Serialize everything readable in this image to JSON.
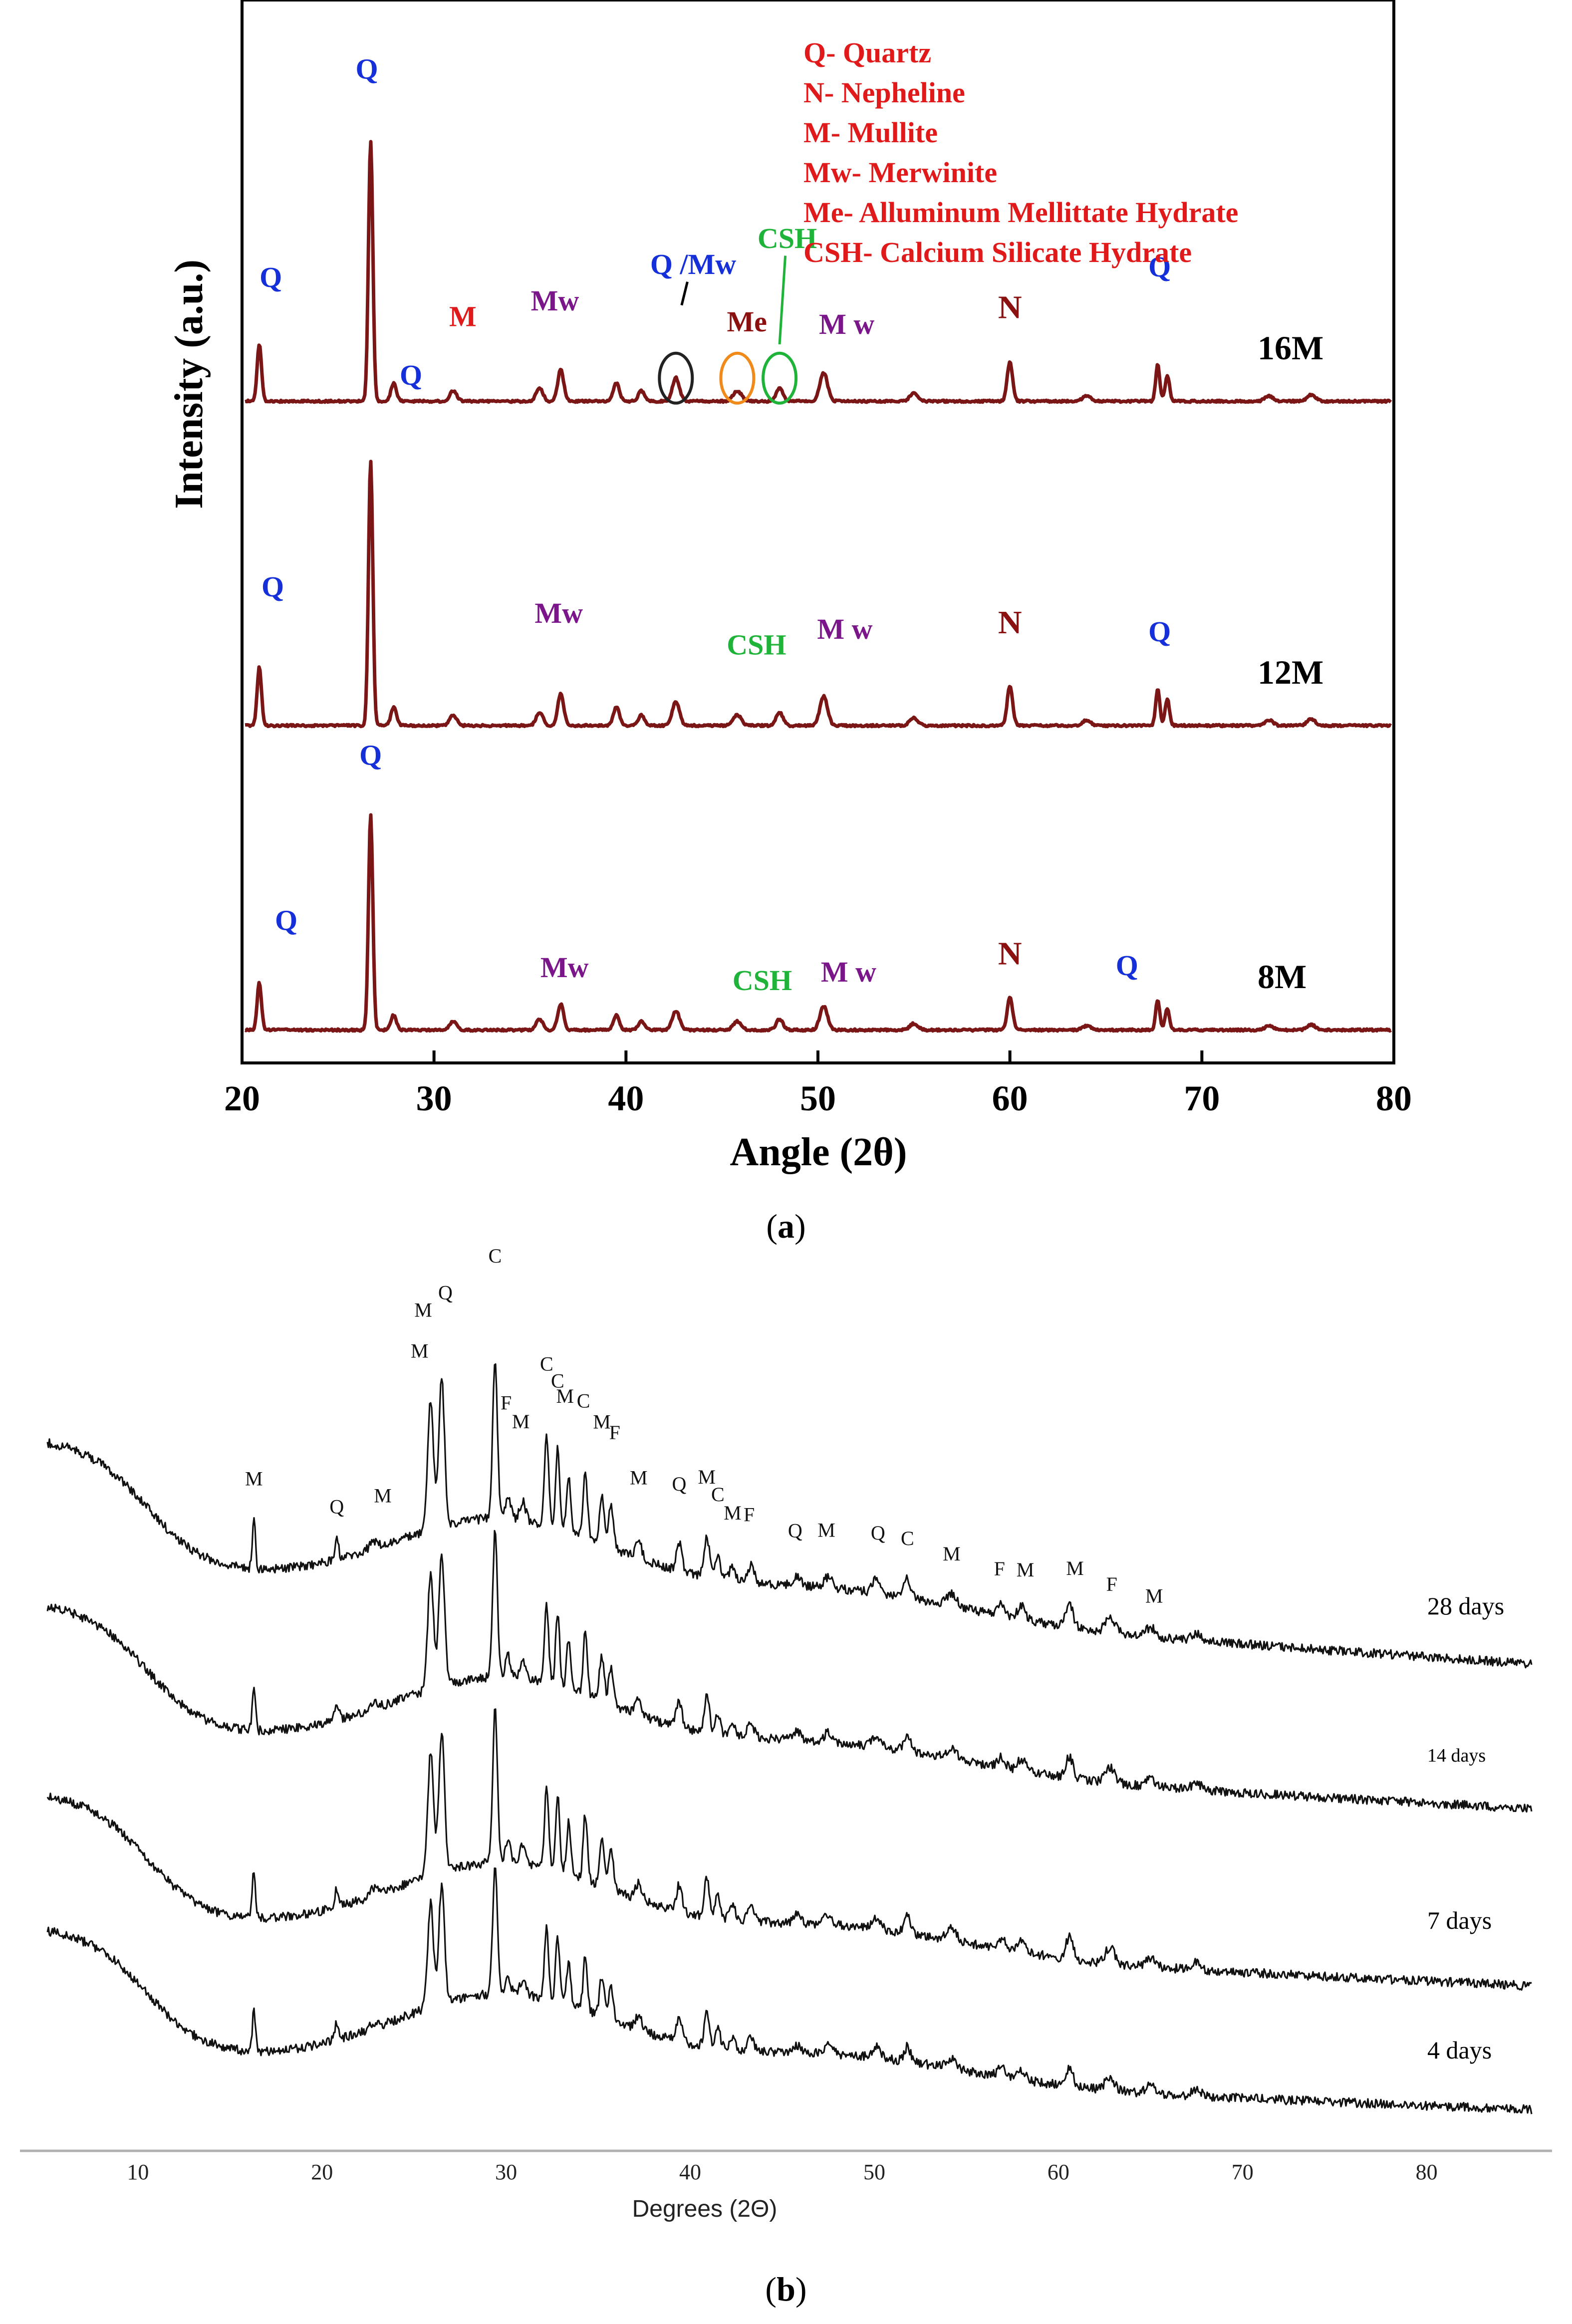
{
  "figure": {
    "panel_a_caption": "a",
    "panel_b_caption": "b"
  },
  "colors": {
    "trace_a": "#7b1616",
    "trace_b": "#111111",
    "quartz": "#1530d8",
    "merwinite": "#7a168a",
    "nepheline": "#8b1010",
    "mullite_a": "#e01a1a",
    "csh": "#1fb33a",
    "legend_text": "#e01a1a",
    "circle_black": "#222222",
    "circle_orange": "#f08a1a",
    "circle_green": "#1fb33a"
  },
  "chart_data": [
    {
      "id": "a",
      "type": "line",
      "title": "",
      "xlabel": "Angle (2θ)",
      "ylabel": "Intensity (a.u.)",
      "xlim": [
        20,
        80
      ],
      "xticks": [
        "20",
        "30",
        "40",
        "50",
        "60",
        "70",
        "80"
      ],
      "legend": [
        "Q- Quartz",
        "N- Nepheline",
        "M- Mullite",
        "Mw- Merwinite",
        "Me- Alluminum Mellittate Hydrate",
        "CSH- Calcium Silicate Hydrate"
      ],
      "peaks_2theta": [
        {
          "x": 20.9,
          "h": 0.22,
          "w": 0.16
        },
        {
          "x": 26.7,
          "h": 1.0,
          "w": 0.16
        },
        {
          "x": 27.9,
          "h": 0.07,
          "w": 0.2
        },
        {
          "x": 31.0,
          "h": 0.04,
          "w": 0.25
        },
        {
          "x": 35.5,
          "h": 0.05,
          "w": 0.25
        },
        {
          "x": 36.6,
          "h": 0.12,
          "w": 0.22
        },
        {
          "x": 39.5,
          "h": 0.07,
          "w": 0.22
        },
        {
          "x": 40.8,
          "h": 0.04,
          "w": 0.22
        },
        {
          "x": 42.6,
          "h": 0.09,
          "w": 0.26
        },
        {
          "x": 45.8,
          "h": 0.04,
          "w": 0.3
        },
        {
          "x": 48.0,
          "h": 0.05,
          "w": 0.25
        },
        {
          "x": 50.3,
          "h": 0.11,
          "w": 0.28
        },
        {
          "x": 55.0,
          "h": 0.03,
          "w": 0.3
        },
        {
          "x": 60.0,
          "h": 0.15,
          "w": 0.2
        },
        {
          "x": 64.0,
          "h": 0.02,
          "w": 0.3
        },
        {
          "x": 67.7,
          "h": 0.14,
          "w": 0.15
        },
        {
          "x": 68.2,
          "h": 0.1,
          "w": 0.16
        },
        {
          "x": 73.5,
          "h": 0.02,
          "w": 0.3
        },
        {
          "x": 75.7,
          "h": 0.025,
          "w": 0.3
        }
      ],
      "series": [
        {
          "name": "16M",
          "scale": 1.0,
          "annotations": [
            {
              "x": 21.5,
              "label": "Q",
              "phase": "quartz",
              "level": 0.45
            },
            {
              "x": 26.5,
              "label": "Q",
              "phase": "quartz",
              "level": 1.25
            },
            {
              "x": 31.5,
              "label": "M",
              "phase": "mullite_a",
              "level": 0.3
            },
            {
              "x": 36.3,
              "label": "Mw",
              "phase": "merwinite",
              "level": 0.36
            },
            {
              "x": 43.5,
              "label": "Q /Mw",
              "phase": "quartz",
              "level": 0.5
            },
            {
              "x": 48.4,
              "label": "CSH",
              "phase": "csh",
              "level": 0.6
            },
            {
              "x": 46.3,
              "label": "Me",
              "phase": "nepheline",
              "level": 0.28
            },
            {
              "x": 51.5,
              "label": "M w",
              "phase": "merwinite",
              "level": 0.27
            },
            {
              "x": 60.0,
              "label": "N",
              "phase": "nepheline",
              "level": 0.33
            },
            {
              "x": 67.8,
              "label": "Q",
              "phase": "quartz",
              "level": 0.49
            }
          ],
          "label": "16M"
        },
        {
          "name": "12M",
          "scale": 1.0,
          "annotations": [
            {
              "x": 21.6,
              "label": "Q",
              "phase": "quartz",
              "level": 0.5
            },
            {
              "x": 28.8,
              "label": "Q",
              "phase": "quartz",
              "level": 1.3
            },
            {
              "x": 36.5,
              "label": "Mw",
              "phase": "merwinite",
              "level": 0.4
            },
            {
              "x": 46.8,
              "label": "CSH",
              "phase": "csh",
              "level": 0.28
            },
            {
              "x": 51.4,
              "label": "M w",
              "phase": "merwinite",
              "level": 0.34
            },
            {
              "x": 60.0,
              "label": "N",
              "phase": "nepheline",
              "level": 0.36
            },
            {
              "x": 67.8,
              "label": "Q",
              "phase": "quartz",
              "level": 0.33
            }
          ],
          "label": "12M"
        },
        {
          "name": "8M",
          "scale": 1.0,
          "annotations": [
            {
              "x": 22.3,
              "label": "Q",
              "phase": "quartz",
              "level": 0.48
            },
            {
              "x": 26.7,
              "label": "Q",
              "phase": "quartz",
              "level": 1.25
            },
            {
              "x": 36.8,
              "label": "Mw",
              "phase": "merwinite",
              "level": 0.26
            },
            {
              "x": 47.1,
              "label": "CSH",
              "phase": "csh",
              "level": 0.2
            },
            {
              "x": 51.6,
              "label": "M w",
              "phase": "merwinite",
              "level": 0.24
            },
            {
              "x": 60.0,
              "label": "N",
              "phase": "nepheline",
              "level": 0.32
            },
            {
              "x": 66.1,
              "label": "Q",
              "phase": "quartz",
              "level": 0.27
            }
          ],
          "label": "8M"
        }
      ],
      "circled_peaks": [
        {
          "x": 42.6,
          "color": "circle_black",
          "series": "16M"
        },
        {
          "x": 45.8,
          "color": "circle_orange",
          "series": "16M"
        },
        {
          "x": 48.0,
          "color": "circle_green",
          "series": "16M"
        }
      ]
    },
    {
      "id": "b",
      "type": "line",
      "title": "",
      "xlabel": "Degrees (2Θ)",
      "ylabel": "",
      "xlim": [
        4,
        86
      ],
      "xticks": [
        "10",
        "20",
        "30",
        "40",
        "50",
        "60",
        "70",
        "80"
      ],
      "peaks_2theta": [
        {
          "x": 16.3,
          "h": 0.55,
          "w": 0.12
        },
        {
          "x": 20.8,
          "h": 0.22,
          "w": 0.15
        },
        {
          "x": 22.8,
          "h": 0.08,
          "w": 0.3
        },
        {
          "x": 25.9,
          "h": 1.4,
          "w": 0.22
        },
        {
          "x": 26.5,
          "h": 1.6,
          "w": 0.22
        },
        {
          "x": 29.4,
          "h": 1.75,
          "w": 0.18
        },
        {
          "x": 30.1,
          "h": 0.25,
          "w": 0.2
        },
        {
          "x": 30.9,
          "h": 0.2,
          "w": 0.22
        },
        {
          "x": 32.2,
          "h": 0.95,
          "w": 0.16
        },
        {
          "x": 32.8,
          "h": 0.85,
          "w": 0.16
        },
        {
          "x": 33.4,
          "h": 0.6,
          "w": 0.16
        },
        {
          "x": 34.3,
          "h": 0.75,
          "w": 0.16
        },
        {
          "x": 35.2,
          "h": 0.55,
          "w": 0.18
        },
        {
          "x": 35.7,
          "h": 0.45,
          "w": 0.18
        },
        {
          "x": 37.2,
          "h": 0.18,
          "w": 0.25
        },
        {
          "x": 39.4,
          "h": 0.3,
          "w": 0.22
        },
        {
          "x": 40.9,
          "h": 0.45,
          "w": 0.2
        },
        {
          "x": 41.5,
          "h": 0.25,
          "w": 0.2
        },
        {
          "x": 42.3,
          "h": 0.15,
          "w": 0.25
        },
        {
          "x": 43.3,
          "h": 0.18,
          "w": 0.25
        },
        {
          "x": 45.8,
          "h": 0.1,
          "w": 0.3
        },
        {
          "x": 47.5,
          "h": 0.12,
          "w": 0.3
        },
        {
          "x": 50.1,
          "h": 0.14,
          "w": 0.3
        },
        {
          "x": 51.8,
          "h": 0.2,
          "w": 0.25
        },
        {
          "x": 54.2,
          "h": 0.14,
          "w": 0.35
        },
        {
          "x": 56.9,
          "h": 0.12,
          "w": 0.3
        },
        {
          "x": 58.0,
          "h": 0.14,
          "w": 0.3
        },
        {
          "x": 60.6,
          "h": 0.25,
          "w": 0.28
        },
        {
          "x": 62.8,
          "h": 0.18,
          "w": 0.35
        },
        {
          "x": 65.0,
          "h": 0.1,
          "w": 0.35
        },
        {
          "x": 67.5,
          "h": 0.08,
          "w": 0.35
        }
      ],
      "series": [
        {
          "name": "28 days",
          "label": "28 days",
          "scale": 1.0
        },
        {
          "name": "14 days",
          "label": "14 days",
          "scale": 0.9
        },
        {
          "name": "7 days",
          "label": "7 days",
          "scale": 0.95
        },
        {
          "name": "4 days",
          "label": "4 days",
          "scale": 0.8
        }
      ],
      "annotations": [
        {
          "x": 16.3,
          "label": "M",
          "level": 0.75
        },
        {
          "x": 20.8,
          "label": "Q",
          "level": 0.35
        },
        {
          "x": 23.3,
          "label": "M",
          "level": 0.32
        },
        {
          "x": 25.3,
          "label": "M",
          "level": 1.75
        },
        {
          "x": 25.5,
          "label": "M",
          "level": 2.18
        },
        {
          "x": 26.7,
          "label": "Q",
          "level": 2.3
        },
        {
          "x": 29.4,
          "label": "C",
          "level": 2.62
        },
        {
          "x": 30.0,
          "label": "F",
          "level": 1.03
        },
        {
          "x": 30.8,
          "label": "M",
          "level": 0.84
        },
        {
          "x": 32.2,
          "label": "C",
          "level": 1.52
        },
        {
          "x": 32.8,
          "label": "C",
          "level": 1.37
        },
        {
          "x": 33.2,
          "label": "M",
          "level": 1.23
        },
        {
          "x": 34.2,
          "label": "C",
          "level": 1.25
        },
        {
          "x": 35.2,
          "label": "M",
          "level": 1.1
        },
        {
          "x": 35.9,
          "label": "F",
          "level": 1.04
        },
        {
          "x": 37.2,
          "label": "M",
          "level": 0.65
        },
        {
          "x": 39.4,
          "label": "Q",
          "level": 0.72
        },
        {
          "x": 40.9,
          "label": "M",
          "level": 0.86
        },
        {
          "x": 41.5,
          "label": "C",
          "level": 0.69
        },
        {
          "x": 42.3,
          "label": "M",
          "level": 0.51
        },
        {
          "x": 43.2,
          "label": "F",
          "level": 0.51
        },
        {
          "x": 45.7,
          "label": "Q",
          "level": 0.37
        },
        {
          "x": 47.4,
          "label": "M",
          "level": 0.4
        },
        {
          "x": 50.2,
          "label": "Q",
          "level": 0.43
        },
        {
          "x": 51.8,
          "label": "C",
          "level": 0.42
        },
        {
          "x": 54.2,
          "label": "M",
          "level": 0.34
        },
        {
          "x": 56.8,
          "label": "F",
          "level": 0.28
        },
        {
          "x": 58.2,
          "label": "M",
          "level": 0.32
        },
        {
          "x": 60.9,
          "label": "M",
          "level": 0.42
        },
        {
          "x": 62.9,
          "label": "F",
          "level": 0.3
        },
        {
          "x": 65.2,
          "label": "M",
          "level": 0.22
        }
      ]
    }
  ]
}
